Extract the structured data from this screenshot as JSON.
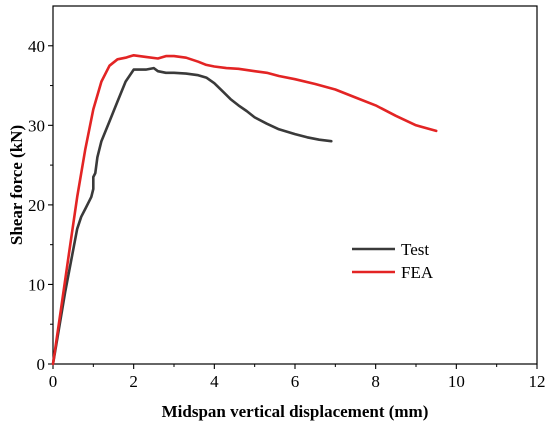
{
  "chart_data": {
    "type": "line",
    "title": "",
    "xlabel": "Midspan vertical displacement (mm)",
    "ylabel": "Shear force (kN)",
    "xlim": [
      0,
      12
    ],
    "ylim": [
      0,
      45
    ],
    "xticks": [
      0,
      2,
      4,
      6,
      8,
      10,
      12
    ],
    "yticks": [
      0,
      10,
      20,
      30,
      40
    ],
    "grid": false,
    "legend_position": "center-right",
    "series": [
      {
        "name": "Test",
        "color": "#3a3a3a",
        "x": [
          0,
          0.3,
          0.6,
          0.7,
          0.8,
          0.9,
          0.95,
          1.0,
          1.0,
          1.05,
          1.1,
          1.15,
          1.2,
          1.4,
          1.6,
          1.8,
          2.0,
          2.3,
          2.5,
          2.6,
          2.8,
          3.0,
          3.3,
          3.6,
          3.8,
          4.0,
          4.2,
          4.4,
          4.6,
          4.8,
          5.0,
          5.3,
          5.6,
          6.0,
          6.3,
          6.6,
          6.9
        ],
        "y": [
          0,
          9,
          17,
          18.5,
          19.5,
          20.5,
          21,
          22,
          23.5,
          24,
          26,
          27,
          28,
          30.5,
          33,
          35.5,
          37,
          37,
          37.2,
          36.8,
          36.6,
          36.6,
          36.5,
          36.3,
          36,
          35.3,
          34.3,
          33.3,
          32.5,
          31.8,
          31,
          30.2,
          29.5,
          28.9,
          28.5,
          28.2,
          28
        ]
      },
      {
        "name": "FEA",
        "color": "#e32424",
        "x": [
          0,
          0.2,
          0.4,
          0.6,
          0.8,
          1.0,
          1.2,
          1.4,
          1.6,
          1.8,
          2.0,
          2.3,
          2.6,
          2.8,
          3.0,
          3.3,
          3.6,
          3.8,
          4.0,
          4.3,
          4.6,
          5.0,
          5.3,
          5.6,
          6.0,
          6.5,
          7.0,
          7.5,
          8.0,
          8.5,
          9.0,
          9.5
        ],
        "y": [
          0,
          7,
          14,
          21,
          27,
          32,
          35.5,
          37.5,
          38.3,
          38.5,
          38.8,
          38.6,
          38.4,
          38.7,
          38.7,
          38.5,
          38,
          37.6,
          37.4,
          37.2,
          37.1,
          36.8,
          36.6,
          36.2,
          35.8,
          35.2,
          34.5,
          33.5,
          32.5,
          31.2,
          30,
          29.3
        ]
      }
    ]
  }
}
